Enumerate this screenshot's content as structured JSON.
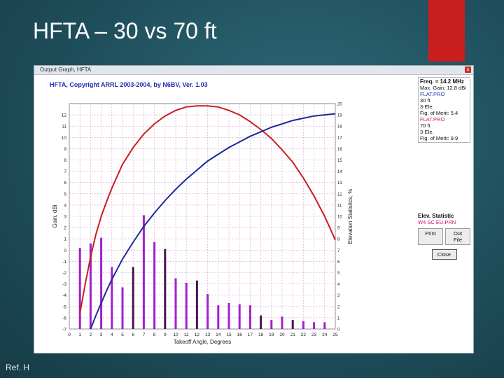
{
  "slide": {
    "title": "HFTA – 30 vs 70 ft",
    "ref": "Ref. H"
  },
  "window": {
    "title": "Output Graph, HFTA",
    "close_glyph": "×"
  },
  "side_panel": {
    "freq": "Freq. = 14.2 MHz",
    "max_gain": "Max. Gain: 12.8 dBi",
    "antenna1": {
      "file": "FLAT.PRO",
      "height": "30 ft",
      "type": "3-Ele.",
      "fig_of_merit": "Fig. of Merit: 5.4"
    },
    "antenna2": {
      "file": "FLAT.PRO",
      "height": "70 ft",
      "type": "3-Ele.",
      "fig_of_merit": "Fig. of Merit: 9.9"
    },
    "elev_statistic_title": "Elev. Statistic",
    "elev_statistic_file": "W4 SC EU.PRN",
    "print_label": "Print",
    "output_label": "Out File",
    "close_label": "Close"
  },
  "colors": {
    "red_curve": "#c81e1e",
    "blue_curve": "#1a2a9c",
    "bar_magenta": "#a020d0",
    "bar_dark": "#4a1450",
    "grid_pink": "#d8a0c8"
  },
  "chart_data": {
    "type": "line",
    "title": "HFTA, Copyright ARRL 2003-2004, by N6BV, Ver. 1.03",
    "xlabel": "Takeoff Angle, Degrees",
    "ylabel": "Gain, dBi",
    "y2label": "Elevation Statistics, %",
    "xlim": [
      0,
      25
    ],
    "ylim": [
      -7,
      13
    ],
    "y2lim": [
      0,
      20
    ],
    "x_ticks": [
      0,
      1,
      2,
      3,
      4,
      5,
      6,
      7,
      8,
      9,
      10,
      11,
      12,
      13,
      14,
      15,
      16,
      17,
      18,
      19,
      20,
      21,
      22,
      23,
      24,
      25
    ],
    "y_ticks": [
      -7,
      -6,
      -5,
      -4,
      -3,
      -2,
      -1,
      0,
      1,
      2,
      3,
      4,
      5,
      6,
      7,
      8,
      9,
      10,
      11,
      12
    ],
    "y2_ticks": [
      0,
      1,
      2,
      3,
      4,
      5,
      6,
      7,
      8,
      9,
      10,
      11,
      12,
      13,
      14,
      15,
      16,
      17,
      18,
      19,
      20
    ],
    "grid": true,
    "series": [
      {
        "name": "",
        "color": "red",
        "x": [
          1.0,
          1.5,
          2,
          2.5,
          3,
          3.5,
          4,
          5,
          6,
          7,
          8,
          9,
          10,
          11,
          12,
          13,
          14,
          15,
          16,
          17,
          18,
          19,
          20,
          21,
          22,
          23,
          24,
          25
        ],
        "y": [
          -5.6,
          -3.0,
          -0.6,
          1.4,
          3.0,
          4.3,
          5.5,
          7.6,
          9.1,
          10.3,
          11.2,
          11.9,
          12.4,
          12.7,
          12.8,
          12.8,
          12.7,
          12.4,
          12.0,
          11.4,
          10.7,
          9.9,
          8.9,
          7.8,
          6.4,
          4.8,
          3.0,
          0.9
        ]
      },
      {
        "name": "",
        "color": "blue",
        "x": [
          2,
          2.5,
          3,
          3.5,
          4,
          5,
          6,
          7,
          8,
          9,
          10,
          11,
          12,
          13,
          14,
          15,
          16,
          17,
          18,
          19,
          20,
          21,
          22,
          23,
          24,
          25
        ],
        "y": [
          -7.0,
          -5.8,
          -4.7,
          -3.6,
          -2.6,
          -0.8,
          0.7,
          2.1,
          3.3,
          4.4,
          5.4,
          6.3,
          7.1,
          7.9,
          8.5,
          9.1,
          9.6,
          10.1,
          10.5,
          10.9,
          11.2,
          11.5,
          11.7,
          11.9,
          12.0,
          12.1
        ]
      }
    ],
    "bars": {
      "name": "",
      "axis": "y2",
      "x": [
        1,
        2,
        3,
        4,
        5,
        6,
        7,
        8,
        9,
        10,
        11,
        12,
        13,
        14,
        15,
        16,
        17,
        18,
        19,
        20,
        21,
        22,
        23,
        24
      ],
      "values": [
        7.2,
        7.6,
        8.1,
        5.5,
        3.7,
        5.5,
        10.1,
        7.7,
        7.1,
        4.5,
        4.1,
        4.3,
        3.1,
        2.1,
        2.3,
        2.2,
        2.1,
        1.2,
        0.8,
        1.1,
        0.8,
        0.7,
        0.6,
        0.6
      ],
      "dark_indices": [
        6,
        9,
        12,
        18,
        21
      ]
    }
  }
}
